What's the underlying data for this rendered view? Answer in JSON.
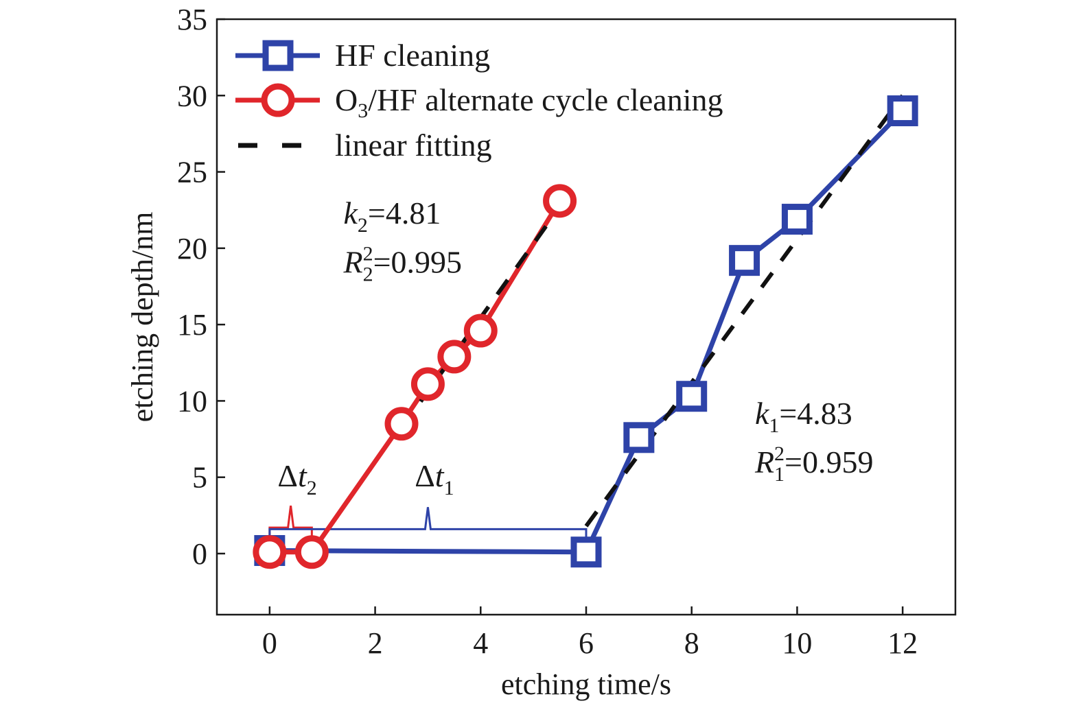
{
  "chart_data": {
    "type": "line",
    "xlabel": "etching time/s",
    "ylabel": "etching depth/nm",
    "xlim": [
      -1,
      13
    ],
    "ylim": [
      -4,
      35
    ],
    "xticks": [
      0,
      2,
      4,
      6,
      8,
      10,
      12
    ],
    "yticks": [
      0,
      5,
      10,
      15,
      20,
      25,
      30,
      35
    ],
    "legend_position": "top-left",
    "series": [
      {
        "name": "HF cleaning",
        "marker": "square",
        "color": "#2e43a8",
        "x": [
          0,
          6,
          7,
          8,
          9,
          10,
          12
        ],
        "y": [
          0.2,
          0.1,
          7.6,
          10.3,
          19.2,
          21.9,
          29.0
        ]
      },
      {
        "name": "O3/HF alternate cycle cleaning",
        "name_parts": {
          "main": "O",
          "sub": "3",
          "rest": "/HF alternate cycle cleaning"
        },
        "marker": "circle",
        "color": "#e0262b",
        "x": [
          0,
          0.8,
          2.5,
          3.0,
          3.5,
          4.0,
          5.5
        ],
        "y": [
          0.1,
          0.1,
          8.5,
          11.1,
          12.9,
          14.6,
          23.1
        ]
      }
    ],
    "fits": [
      {
        "name": "linear fitting",
        "color": "#111111",
        "dash": true,
        "x": [
          2.5,
          5.5
        ],
        "y": [
          8.2,
          22.7
        ]
      },
      {
        "name": "linear fitting",
        "color": "#111111",
        "dash": true,
        "x": [
          6.0,
          12.0
        ],
        "y": [
          1.8,
          30.0
        ]
      }
    ],
    "annotations": [
      {
        "id": "k2",
        "var": "k",
        "sub": "2",
        "text": "=4.81",
        "x": 1.4,
        "y": 21.6
      },
      {
        "id": "r2",
        "var": "R",
        "sub": "2",
        "sup": "2",
        "text": "=0.995",
        "x": 1.4,
        "y": 18.4
      },
      {
        "id": "k1",
        "var": "k",
        "sub": "1",
        "text": "=4.83",
        "x": 9.2,
        "y": 8.5
      },
      {
        "id": "r1",
        "var": "R",
        "sub": "1",
        "sup": "2",
        "text": "=0.959",
        "x": 9.2,
        "y": 5.3
      },
      {
        "id": "dt2",
        "var": "Δt",
        "sub": "2",
        "x": 0.15,
        "y": 4.4
      },
      {
        "id": "dt1",
        "var": "Δt",
        "sub": "1",
        "x": 2.75,
        "y": 4.4
      }
    ],
    "brackets": [
      {
        "id": "dt2-bracket",
        "color": "#e0262b",
        "x0": 0,
        "x1": 0.8,
        "y": 1.7
      },
      {
        "id": "dt1-bracket",
        "color": "#2e43a8",
        "x0": 0,
        "x1": 6,
        "y": 1.6
      }
    ]
  }
}
